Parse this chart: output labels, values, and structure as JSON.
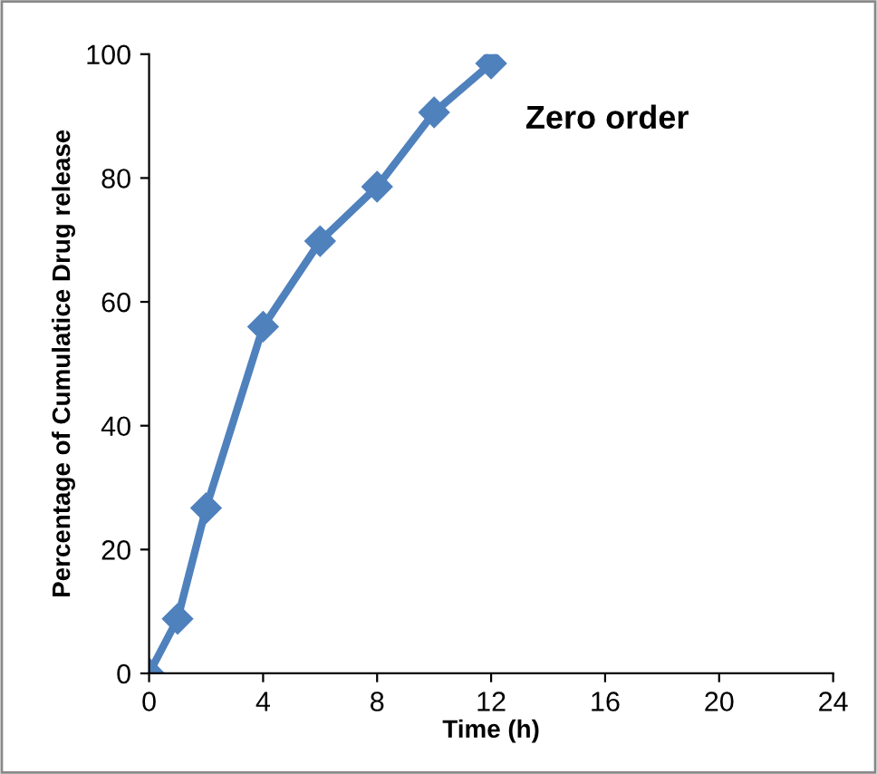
{
  "chart_data": {
    "type": "line",
    "xlabel": "Time (h)",
    "ylabel": "Percentage of Cumulatice Drug release",
    "annotations": [
      "Zero order"
    ],
    "x": [
      0,
      1,
      2,
      4,
      6,
      8,
      10,
      12
    ],
    "series": [
      {
        "color": "#4f81bd",
        "values": [
          0,
          8.8,
          26.7,
          56,
          69.8,
          78.6,
          90.6,
          98.5
        ]
      }
    ],
    "xlim": [
      0,
      24
    ],
    "xticks": [
      0,
      4,
      8,
      12,
      16,
      20,
      24
    ],
    "ylim": [
      0,
      100
    ],
    "yticks": [
      0,
      20,
      40,
      60,
      80,
      100
    ],
    "marker": "diamond",
    "line_style": "solid",
    "grid": false,
    "legend": false
  }
}
